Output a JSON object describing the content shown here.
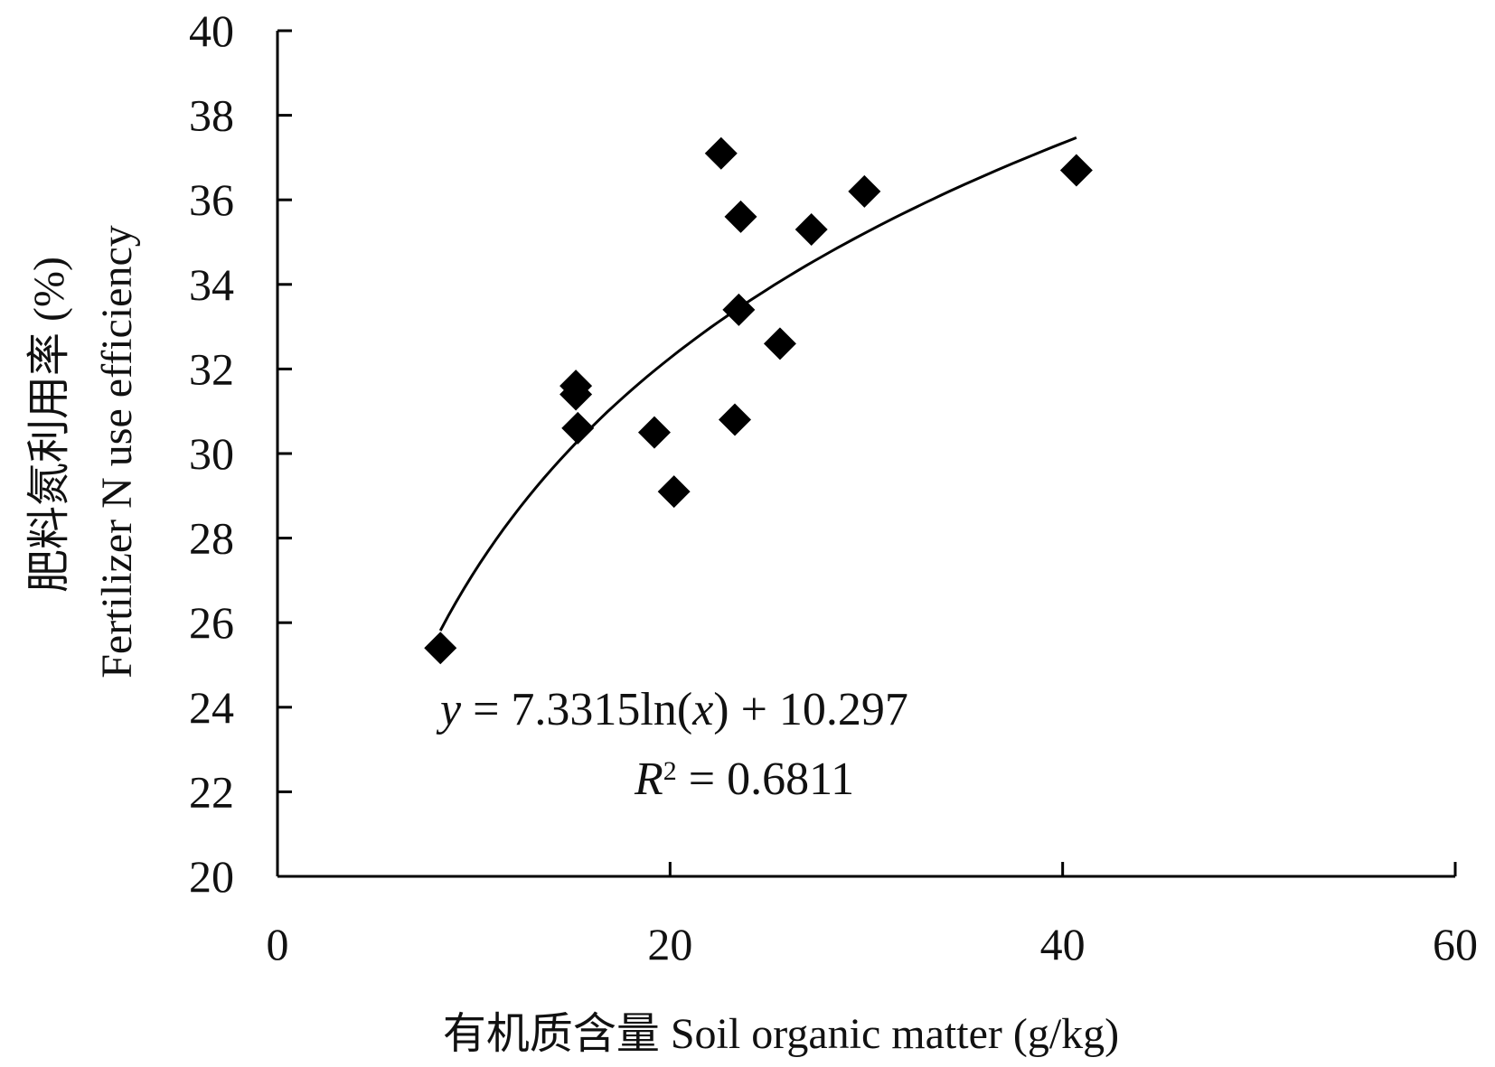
{
  "chart_data": {
    "type": "scatter",
    "title": "",
    "xlabel": "有机质含量 Soil organic matter (g/kg)",
    "ylabel_line1": "肥料氮利用率 (%)",
    "ylabel_line2": "Fertilizer N use efficiency",
    "xlim": [
      0,
      60
    ],
    "ylim": [
      20,
      40
    ],
    "x_ticks": [
      "0",
      "20",
      "40",
      "60"
    ],
    "y_ticks": [
      "20",
      "22",
      "24",
      "26",
      "28",
      "30",
      "32",
      "34",
      "36",
      "38",
      "40"
    ],
    "grid": false,
    "points": [
      {
        "x": 8.3,
        "y": 25.4
      },
      {
        "x": 15.2,
        "y": 31.6
      },
      {
        "x": 15.2,
        "y": 31.4
      },
      {
        "x": 15.3,
        "y": 30.6
      },
      {
        "x": 19.2,
        "y": 30.5
      },
      {
        "x": 20.2,
        "y": 29.1
      },
      {
        "x": 22.6,
        "y": 37.1
      },
      {
        "x": 23.3,
        "y": 30.8
      },
      {
        "x": 23.5,
        "y": 33.4
      },
      {
        "x": 23.6,
        "y": 35.6
      },
      {
        "x": 25.6,
        "y": 32.6
      },
      {
        "x": 27.2,
        "y": 35.3
      },
      {
        "x": 29.9,
        "y": 36.2
      },
      {
        "x": 40.7,
        "y": 36.7
      }
    ],
    "trendline": {
      "type": "logarithmic",
      "a": 7.3315,
      "b": 10.297,
      "x_from": 8.3,
      "x_to": 40.7
    },
    "equation_y": "y",
    "equation_rest": " = 7.3315ln(",
    "equation_x": "x",
    "equation_tail": ") + 10.297",
    "r2_R": "R",
    "r2_sup": "2",
    "r2_rest": " = 0.6811",
    "marker_color": "#000000"
  }
}
